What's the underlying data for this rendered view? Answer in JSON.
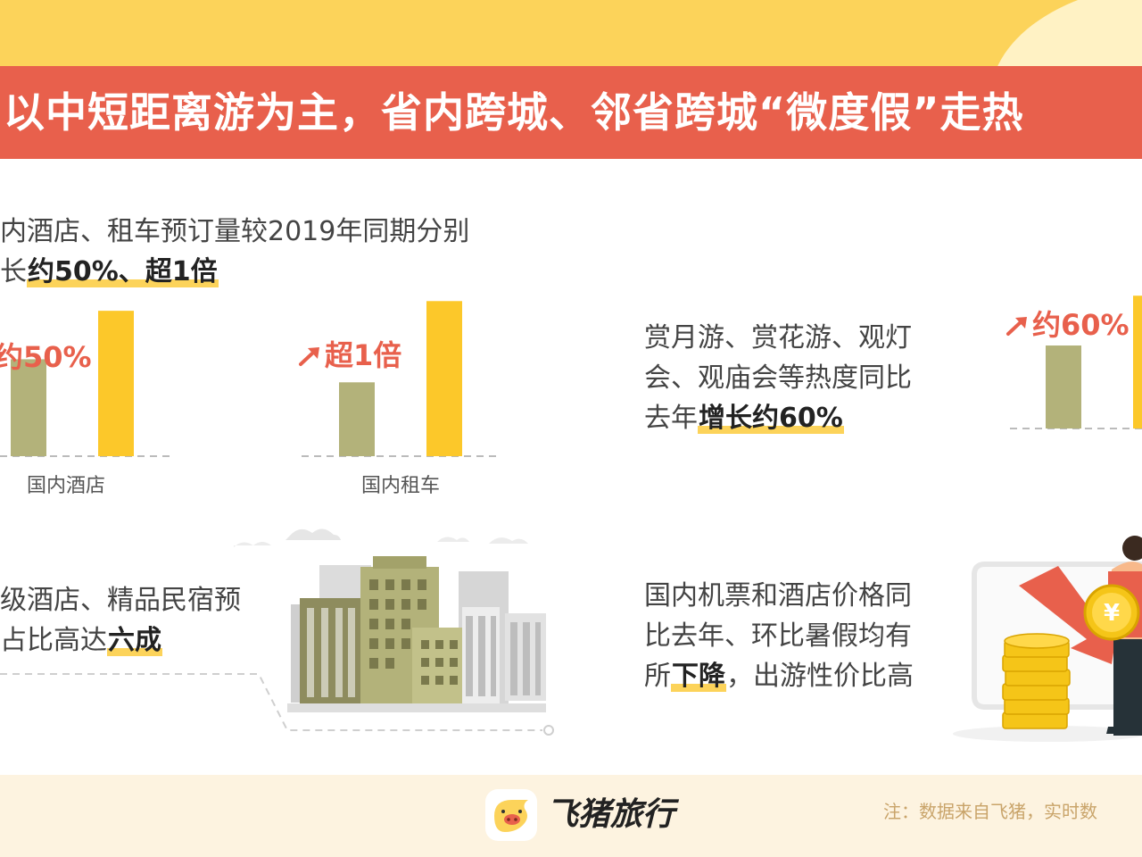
{
  "header": {
    "title": "以中短距离游为主，省内跨城、邻省跨城“微度假”走热"
  },
  "section_booking": {
    "line1": "内酒店、租车预订量较2019年同期分别",
    "line2_prefix": "长",
    "line2_highlight": "约50%、超1倍"
  },
  "section_festival": {
    "line1": "赏月游、赏花游、观灯",
    "line2": "会、观庙会等热度同比",
    "line3_prefix": "去年",
    "line3_highlight": "增长约60%"
  },
  "section_premium": {
    "line1": "级酒店、精品民宿预",
    "line2_prefix": "占比高达",
    "line2_highlight": "六成"
  },
  "section_price": {
    "line1": "国内机票和酒店价格同",
    "line2": "比去年、环比暑假均有",
    "line3_prefix": "所",
    "line3_highlight": "下降",
    "line3_suffix": "，出游性价比高"
  },
  "footer": {
    "brand": "飞猪旅行",
    "note": "注：数据来自飞猪，实时数"
  },
  "colors": {
    "banner": "#e8604c",
    "top_band": "#fcd35a",
    "bar_previous": "#b3b27a",
    "bar_current": "#fcc82a",
    "growth_text": "#e8604c",
    "highlight": "#fcd35a"
  },
  "icons": [
    "up-arrow-icon",
    "city-buildings-illustration",
    "coin-stack-illustration",
    "pig-logo-icon"
  ],
  "chart_data": [
    {
      "type": "bar",
      "xlabel": "国内酒店",
      "annotation": "约50%",
      "values": [
        1,
        1.5
      ],
      "ylim": [
        0,
        1.75
      ]
    },
    {
      "type": "bar",
      "xlabel": "国内租车",
      "annotation": "超1倍",
      "values": [
        1,
        2.1
      ],
      "ylim": [
        0,
        2.2
      ]
    },
    {
      "type": "bar",
      "xlabel": "",
      "annotation": "约60%",
      "values": [
        1,
        1.6
      ],
      "ylim": [
        0,
        1.85
      ]
    }
  ]
}
